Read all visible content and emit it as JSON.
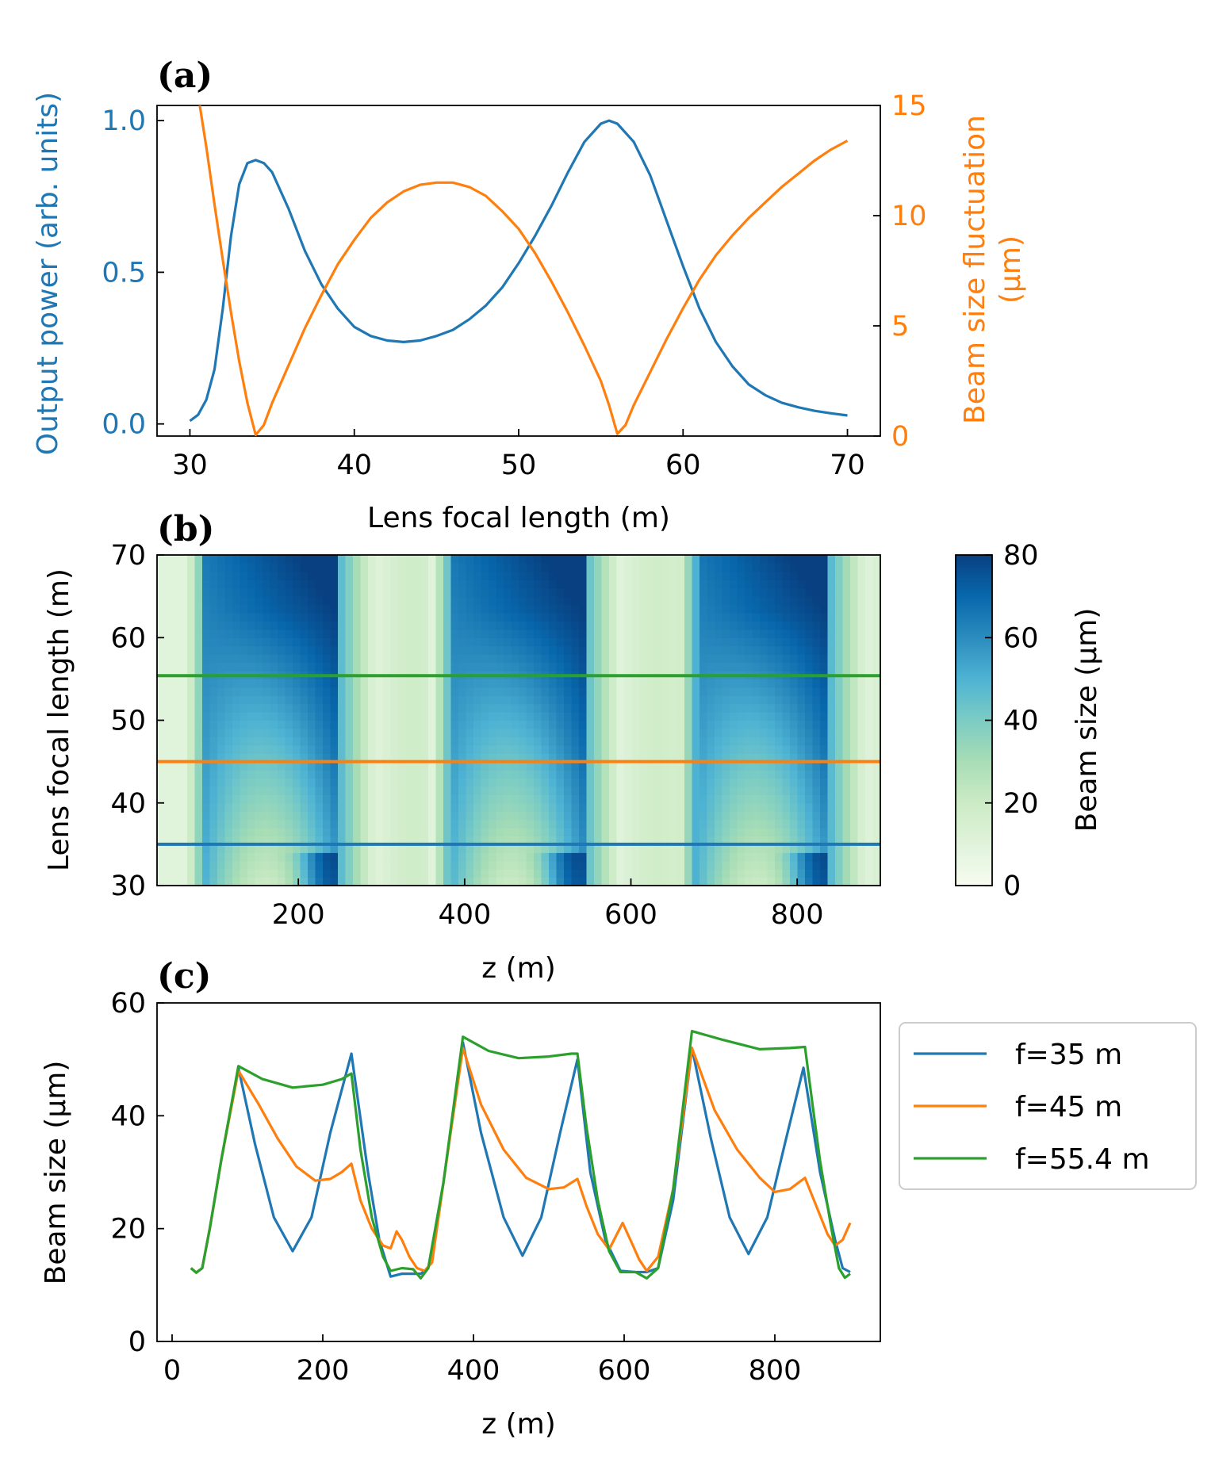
{
  "colors": {
    "blue": "#1f77b4",
    "orange": "#ff7f0e",
    "green": "#2ca02c",
    "colormap": [
      "#f7fcf0",
      "#e0f3db",
      "#ccebc5",
      "#a8ddb5",
      "#7bccc4",
      "#4eb3d3",
      "#2b8cbe",
      "#0868ac",
      "#084081"
    ]
  },
  "chart_data": [
    {
      "panel": "(a)",
      "type": "line",
      "xlabel": "Lens focal length (m)",
      "xlim": [
        28,
        72
      ],
      "xticks": [
        "30",
        "40",
        "50",
        "60",
        "70"
      ],
      "ylabel_left": "Output power (arb. units)",
      "ylim_left": [
        -0.04,
        1.05
      ],
      "yticks_left": [
        "0.0",
        "0.5",
        "1.0"
      ],
      "ylabel_right_line1": "Beam size fluctuation",
      "ylabel_right_line2": "(μm)",
      "ylim_right": [
        0,
        15
      ],
      "yticks_right": [
        "0",
        "5",
        "10",
        "15"
      ],
      "series": [
        {
          "name": "Output power",
          "axis": "left",
          "color": "#1f77b4",
          "x": [
            30,
            30.5,
            31,
            31.5,
            32,
            32.5,
            33,
            33.5,
            34,
            34.5,
            35,
            36,
            37,
            38,
            39,
            40,
            41,
            42,
            43,
            44,
            45,
            46,
            47,
            48,
            49,
            50,
            51,
            52,
            53,
            54,
            55,
            55.5,
            56,
            57,
            58,
            59,
            60,
            61,
            62,
            63,
            64,
            65,
            66,
            67,
            68,
            69,
            70
          ],
          "y": [
            0.01,
            0.03,
            0.08,
            0.18,
            0.38,
            0.62,
            0.79,
            0.86,
            0.87,
            0.86,
            0.83,
            0.71,
            0.57,
            0.46,
            0.38,
            0.32,
            0.29,
            0.275,
            0.27,
            0.275,
            0.29,
            0.31,
            0.345,
            0.39,
            0.45,
            0.53,
            0.62,
            0.72,
            0.83,
            0.93,
            0.99,
            1.0,
            0.99,
            0.93,
            0.82,
            0.67,
            0.52,
            0.38,
            0.27,
            0.19,
            0.13,
            0.095,
            0.07,
            0.055,
            0.043,
            0.035,
            0.028
          ]
        },
        {
          "name": "Beam size fluctuation",
          "axis": "right",
          "color": "#ff7f0e",
          "x": [
            30.6,
            31,
            31.5,
            32,
            32.5,
            33,
            33.5,
            34,
            34.5,
            35,
            36,
            37,
            38,
            39,
            40,
            41,
            42,
            43,
            44,
            45,
            46,
            47,
            48,
            49,
            50,
            51,
            52,
            53,
            54,
            55,
            55.5,
            56,
            56.5,
            57,
            58,
            59,
            60,
            61,
            62,
            63,
            64,
            65,
            66,
            67,
            68,
            69,
            70
          ],
          "y": [
            15.2,
            13.1,
            10.5,
            8.0,
            5.6,
            3.4,
            1.5,
            0.05,
            0.5,
            1.5,
            3.2,
            4.9,
            6.4,
            7.8,
            8.9,
            9.9,
            10.6,
            11.1,
            11.4,
            11.5,
            11.5,
            11.3,
            10.9,
            10.2,
            9.4,
            8.3,
            7.0,
            5.6,
            4.1,
            2.5,
            1.4,
            0.1,
            0.5,
            1.4,
            2.9,
            4.4,
            5.8,
            7.1,
            8.2,
            9.1,
            9.9,
            10.6,
            11.3,
            11.9,
            12.5,
            13.0,
            13.4
          ]
        }
      ]
    },
    {
      "panel": "(b)",
      "type": "heatmap",
      "xlabel": "z (m)",
      "xlim": [
        30,
        900
      ],
      "xticks": [
        "200",
        "400",
        "600",
        "800"
      ],
      "ylabel": "Lens focal length (m)",
      "ylim": [
        30,
        70
      ],
      "yticks": [
        "30",
        "40",
        "50",
        "60",
        "70"
      ],
      "colorbar_label": "Beam size (μm)",
      "colorbar_range": [
        0,
        80
      ],
      "colorbar_ticks": [
        "0",
        "20",
        "40",
        "60",
        "80"
      ],
      "overlay_lines": [
        {
          "f": 35,
          "color": "#1f77b4"
        },
        {
          "f": 45,
          "color": "#ff7f0e"
        },
        {
          "f": 55.4,
          "color": "#2ca02c"
        }
      ]
    },
    {
      "panel": "(c)",
      "type": "line",
      "xlabel": "z (m)",
      "xlim": [
        -20,
        940
      ],
      "xticks": [
        "0",
        "200",
        "400",
        "600",
        "800"
      ],
      "ylabel": "Beam size (μm)",
      "ylim": [
        0,
        60
      ],
      "yticks": [
        "0",
        "20",
        "40",
        "60"
      ],
      "legend_position": "outside-right",
      "series": [
        {
          "name": "f=35 m",
          "color": "#1f77b4",
          "x": [
            25,
            32,
            40,
            50,
            65,
            88,
            110,
            135,
            160,
            185,
            210,
            238,
            260,
            275,
            290,
            305,
            320,
            330,
            340,
            360,
            386,
            410,
            440,
            465,
            490,
            515,
            538,
            555,
            575,
            595,
            615,
            630,
            645,
            665,
            690,
            715,
            740,
            765,
            790,
            815,
            838,
            860,
            880,
            890,
            900
          ],
          "y": [
            13,
            12.2,
            13,
            20,
            32,
            48.5,
            35,
            22,
            16,
            22,
            37,
            51,
            30,
            18,
            11.5,
            12,
            12,
            12,
            13,
            28,
            53,
            37,
            22,
            15.2,
            22,
            37,
            50,
            30,
            18,
            12.5,
            12.3,
            12.3,
            13,
            25,
            52,
            36,
            22,
            15.5,
            22,
            36,
            48.5,
            30,
            18,
            13,
            12.3
          ]
        },
        {
          "name": "f=45 m",
          "color": "#ff7f0e",
          "x": [
            25,
            32,
            40,
            50,
            65,
            88,
            115,
            140,
            165,
            190,
            210,
            225,
            238,
            250,
            265,
            280,
            290,
            298,
            305,
            315,
            325,
            335,
            345,
            360,
            386,
            410,
            440,
            470,
            500,
            520,
            538,
            550,
            565,
            580,
            598,
            610,
            620,
            630,
            645,
            665,
            690,
            720,
            750,
            780,
            800,
            820,
            840,
            855,
            870,
            880,
            890,
            900
          ],
          "y": [
            13,
            12.2,
            13,
            20,
            32,
            48,
            42,
            36,
            31,
            28.5,
            28.8,
            30,
            31.5,
            25,
            20,
            17,
            16.5,
            19.5,
            18,
            15,
            13,
            12.5,
            14,
            28,
            52,
            42,
            34,
            29,
            27,
            27.3,
            28.8,
            24,
            19,
            16.3,
            21,
            17.5,
            14.5,
            12.5,
            15,
            27,
            52,
            41,
            34,
            29,
            26.5,
            27,
            29,
            24,
            19,
            17,
            18,
            21
          ]
        },
        {
          "name": "f=55.4 m",
          "color": "#2ca02c",
          "x": [
            25,
            32,
            40,
            50,
            65,
            88,
            120,
            160,
            200,
            225,
            238,
            250,
            265,
            280,
            290,
            305,
            320,
            330,
            340,
            360,
            386,
            420,
            460,
            500,
            530,
            538,
            550,
            565,
            580,
            595,
            615,
            630,
            645,
            665,
            690,
            730,
            780,
            820,
            840,
            850,
            860,
            875,
            885,
            893,
            900
          ],
          "y": [
            13,
            12.2,
            13,
            20,
            32,
            48.8,
            46.5,
            45,
            45.5,
            46.5,
            47.5,
            34,
            22,
            15,
            12.5,
            13,
            12.8,
            11.2,
            13,
            28,
            54,
            51.5,
            50.2,
            50.5,
            51,
            51,
            38,
            25,
            16,
            12.3,
            12.3,
            11.2,
            13,
            27,
            55,
            53.5,
            51.8,
            52,
            52.2,
            42,
            32,
            20,
            13,
            11.3,
            12
          ]
        }
      ]
    }
  ]
}
